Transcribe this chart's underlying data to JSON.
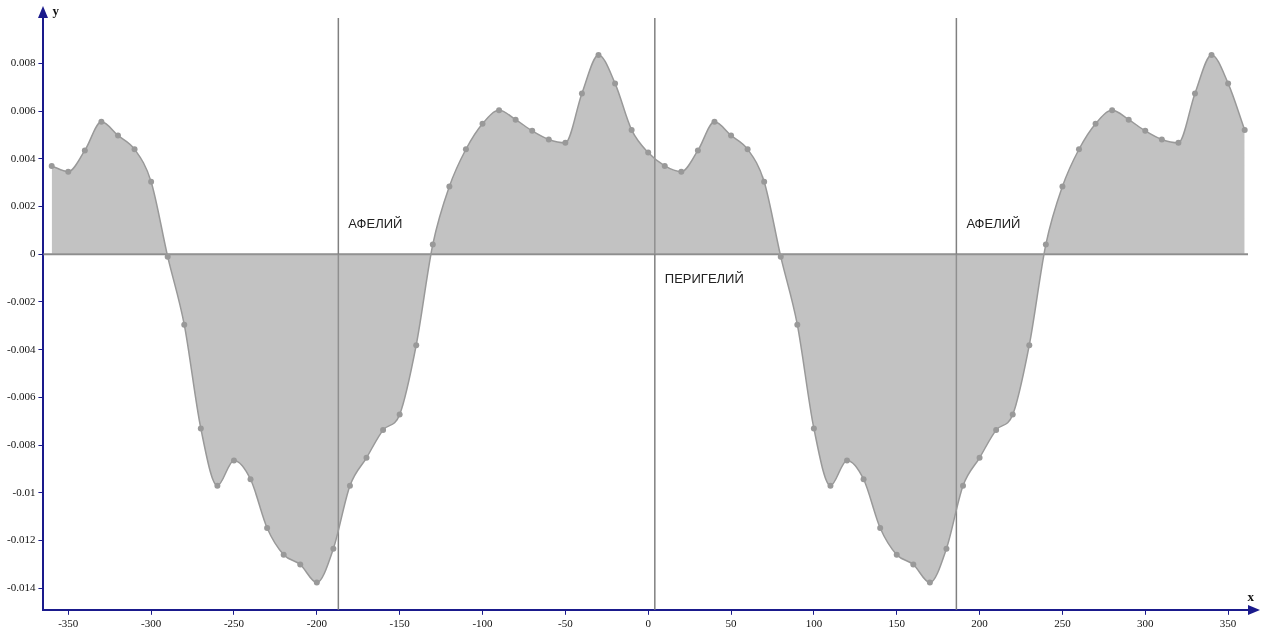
{
  "chart_data": {
    "type": "area",
    "xlabel": "x",
    "ylabel": "y",
    "x": [
      -360,
      -350,
      -340,
      -330,
      -320,
      -310,
      -300,
      -290,
      -280,
      -270,
      -260,
      -250,
      -240,
      -230,
      -220,
      -210,
      -200,
      -190,
      -180,
      -170,
      -160,
      -150,
      -140,
      -130,
      -120,
      -110,
      -100,
      -90,
      -80,
      -70,
      -60,
      -50,
      -40,
      -30,
      -20,
      -10,
      0,
      10,
      20,
      30,
      40,
      50,
      60,
      70,
      80,
      90,
      100,
      110,
      120,
      130,
      140,
      150,
      160,
      170,
      180,
      190,
      200,
      210,
      220,
      230,
      240,
      250,
      260,
      270,
      280,
      290,
      300,
      310,
      320,
      330,
      340,
      350,
      360
    ],
    "series": [
      {
        "color": "#999999",
        "values": [
          0.0037,
          0.00346,
          0.00435,
          0.00555,
          0.00498,
          0.0044,
          0.00304,
          -0.0001,
          -0.00295,
          -0.0073,
          -0.0097,
          -0.00864,
          -0.00943,
          -0.01147,
          -0.01259,
          -0.013,
          -0.01376,
          -0.01234,
          -0.0097,
          -0.00853,
          -0.00737,
          -0.00672,
          -0.00381,
          0.00041,
          0.00284,
          0.0044,
          0.00547,
          0.00603,
          0.00564,
          0.00517,
          0.00481,
          0.00467,
          0.00674,
          0.00835,
          0.00716,
          0.00521,
          0.00426,
          0.0037,
          0.00346,
          0.00435,
          0.00555,
          0.00498,
          0.0044,
          0.00304,
          -0.0001,
          -0.00295,
          -0.0073,
          -0.0097,
          -0.00864,
          -0.00943,
          -0.01147,
          -0.01259,
          -0.013,
          -0.01376,
          -0.01234,
          -0.0097,
          -0.00853,
          -0.00737,
          -0.00672,
          -0.00381,
          0.00041,
          0.00284,
          0.0044,
          0.00547,
          0.00603,
          0.00564,
          0.00517,
          0.00481,
          0.00467,
          0.00674,
          0.00835,
          0.00716,
          0.00521
        ]
      }
    ],
    "xlim": [
      -365,
      362
    ],
    "ylim": [
      -0.0149,
      0.0099
    ],
    "xticks": [
      -350,
      -300,
      -250,
      -200,
      -150,
      -100,
      -50,
      0,
      50,
      100,
      150,
      200,
      250,
      300,
      350
    ],
    "yticks": [
      -0.014,
      -0.012,
      -0.01,
      -0.008,
      -0.006,
      -0.004,
      -0.002,
      0,
      0.002,
      0.004,
      0.006,
      0.008
    ],
    "ref_lines": [
      {
        "axis": "y",
        "value": 0,
        "color": "#8c8c8c"
      },
      {
        "axis": "x",
        "value": -187,
        "label": "АФЕЛИЙ",
        "color": "#808080"
      },
      {
        "axis": "x",
        "value": 4,
        "label": "ПЕРИГЕЛИЙ",
        "color": "#808080"
      },
      {
        "axis": "x",
        "value": 186,
        "label": "АФЕЛИЙ",
        "color": "#808080"
      }
    ],
    "grid": false,
    "legend": false,
    "marker": "circle",
    "line_style": "solid"
  }
}
